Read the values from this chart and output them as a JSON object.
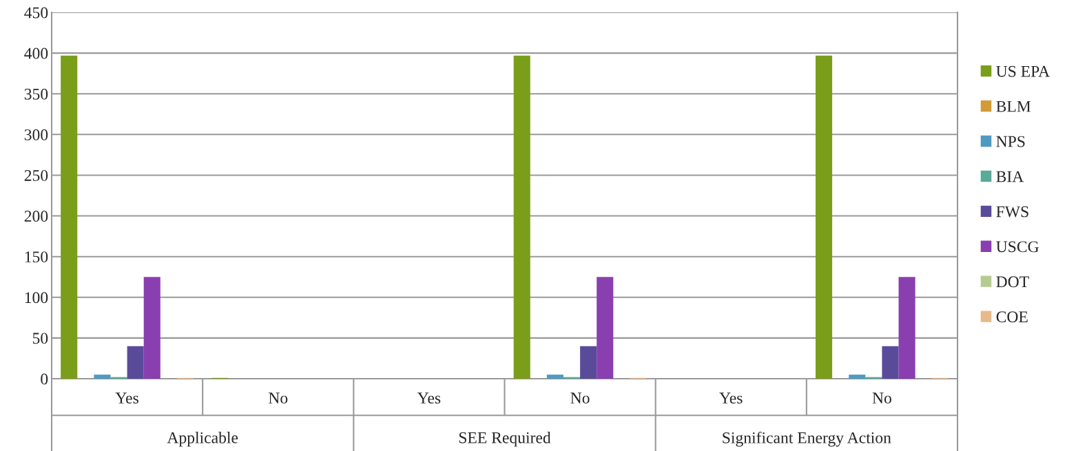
{
  "chart_data": {
    "type": "bar",
    "categories": [
      "Yes",
      "No",
      "Yes",
      "No",
      "Yes",
      "No"
    ],
    "annotations": [
      "Applicable",
      "SEE Required",
      "Significant Energy Action"
    ],
    "series": [
      {
        "name": "US EPA",
        "color": "#7a9e1a",
        "values": [
          397,
          1,
          0,
          397,
          0,
          397
        ]
      },
      {
        "name": "BLM",
        "color": "#d39a3a",
        "values": [
          0,
          0,
          0,
          0,
          0,
          0
        ]
      },
      {
        "name": "NPS",
        "color": "#4f9bc0",
        "values": [
          5,
          0,
          0,
          5,
          0,
          5
        ]
      },
      {
        "name": "BIA",
        "color": "#5aaa98",
        "values": [
          2,
          0,
          0,
          2,
          0,
          2
        ]
      },
      {
        "name": "FWS",
        "color": "#5a4b9a",
        "values": [
          40,
          0,
          0,
          40,
          0,
          40
        ]
      },
      {
        "name": "USCG",
        "color": "#8a3fb0",
        "values": [
          125,
          0,
          0,
          125,
          0,
          125
        ]
      },
      {
        "name": "DOT",
        "color": "#b5cc90",
        "values": [
          0,
          0,
          0,
          0,
          0,
          0
        ]
      },
      {
        "name": "COE",
        "color": "#e8b98a",
        "values": [
          1,
          0,
          0,
          1,
          0,
          1
        ]
      }
    ],
    "ylim": [
      0,
      450
    ],
    "yticks": [
      0,
      50,
      100,
      150,
      200,
      250,
      300,
      350,
      400,
      450
    ],
    "grid": "y",
    "legend": "right"
  }
}
